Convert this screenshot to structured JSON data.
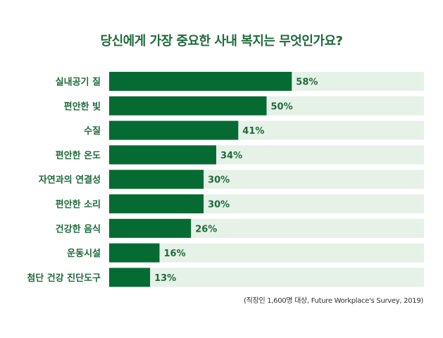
{
  "title": "당신에게 가장 중요한 사내 복지는 무엇인가요?",
  "note": "(직장인 1,600명 대상, Future Workplace's Survey, 2019)",
  "colors": {
    "bar": "#066b33",
    "track": "#e6f1e8",
    "text": "#1e6b3a",
    "title": "#1e6b3a"
  },
  "chart_data": {
    "type": "bar",
    "orientation": "horizontal",
    "title": "당신에게 가장 중요한 사내 복지는 무엇인가요?",
    "categories": [
      "실내공기 질",
      "편안한 빛",
      "수질",
      "편안한 온도",
      "자연과의 연결성",
      "편안한 소리",
      "건강한 음식",
      "운동시설",
      "첨단 건강 진단도구"
    ],
    "values": [
      58,
      50,
      41,
      34,
      30,
      30,
      26,
      16,
      13
    ],
    "value_labels": [
      "58%",
      "50%",
      "41%",
      "34%",
      "30%",
      "30%",
      "26%",
      "16%",
      "13%"
    ],
    "xlim": [
      0,
      100
    ],
    "grid": false,
    "legend": "none"
  }
}
